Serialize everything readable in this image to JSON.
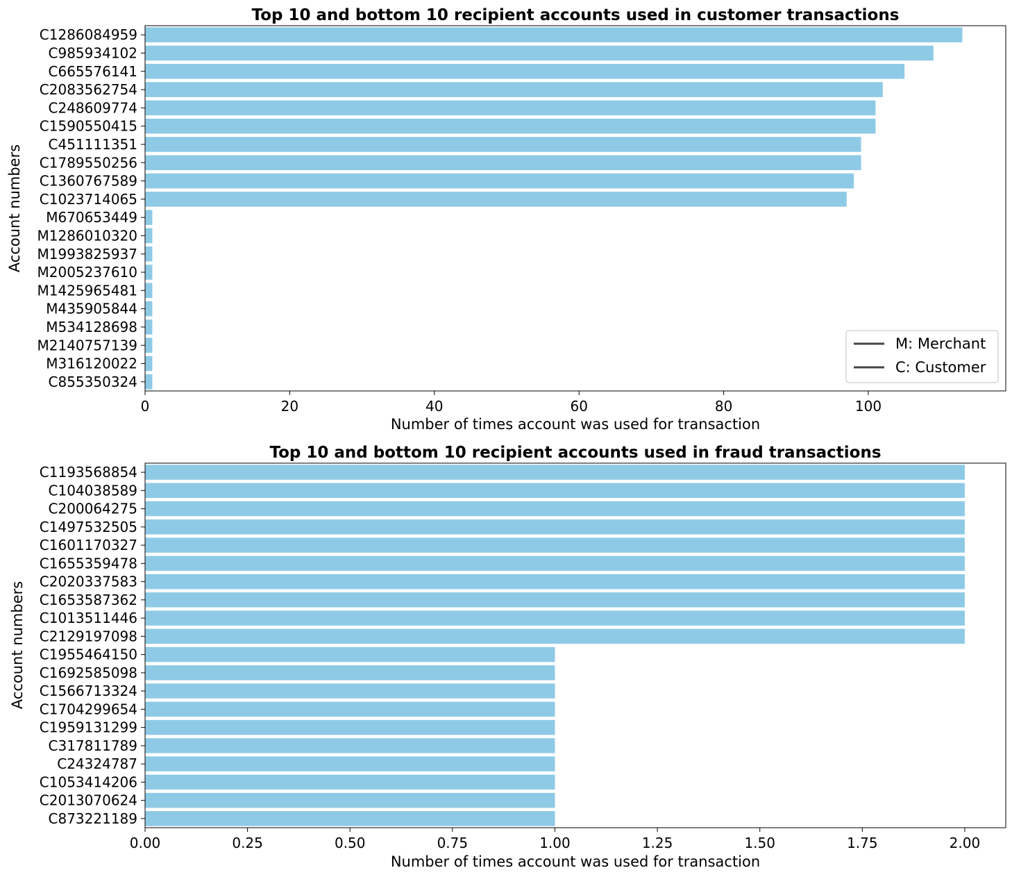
{
  "chart_data": [
    {
      "type": "bar",
      "orientation": "horizontal",
      "title": "Top 10 and bottom 10 recipient accounts used in customer transactions",
      "xlabel": "Number of times account was used for transaction",
      "ylabel": "Account numbers",
      "xlim": [
        0,
        119
      ],
      "xticks": [
        0,
        20,
        40,
        60,
        80,
        100
      ],
      "xtick_labels": [
        "0",
        "20",
        "40",
        "60",
        "80",
        "100"
      ],
      "bar_color": "#8ecae6",
      "legend_position": "lower right",
      "legend": [
        "M: Merchant",
        "C: Customer"
      ],
      "categories": [
        "C1286084959",
        "C985934102",
        "C665576141",
        "C2083562754",
        "C248609774",
        "C1590550415",
        "C451111351",
        "C1789550256",
        "C1360767589",
        "C1023714065",
        "M670653449",
        "M1286010320",
        "M1993825937",
        "M2005237610",
        "M1425965481",
        "M435905844",
        "M534128698",
        "M2140757139",
        "M316120022",
        "C855350324"
      ],
      "values": [
        113,
        109,
        105,
        102,
        101,
        101,
        99,
        99,
        98,
        97,
        1,
        1,
        1,
        1,
        1,
        1,
        1,
        1,
        1,
        1
      ]
    },
    {
      "type": "bar",
      "orientation": "horizontal",
      "title": "Top 10 and bottom 10 recipient accounts used in fraud transactions",
      "xlabel": "Number of times account was used for transaction",
      "ylabel": "Account numbers",
      "xlim": [
        0,
        2.1
      ],
      "xticks": [
        0,
        0.25,
        0.5,
        0.75,
        1.0,
        1.25,
        1.5,
        1.75,
        2.0
      ],
      "xtick_labels": [
        "0.00",
        "0.25",
        "0.50",
        "0.75",
        "1.00",
        "1.25",
        "1.50",
        "1.75",
        "2.00"
      ],
      "bar_color": "#8ecae6",
      "categories": [
        "C1193568854",
        "C104038589",
        "C200064275",
        "C1497532505",
        "C1601170327",
        "C1655359478",
        "C2020337583",
        "C1653587362",
        "C1013511446",
        "C2129197098",
        "C1955464150",
        "C1692585098",
        "C1566713324",
        "C1704299654",
        "C1959131299",
        "C317811789",
        "C24324787",
        "C1053414206",
        "C2013070624",
        "C873221189"
      ],
      "values": [
        2,
        2,
        2,
        2,
        2,
        2,
        2,
        2,
        2,
        2,
        1,
        1,
        1,
        1,
        1,
        1,
        1,
        1,
        1,
        1
      ]
    }
  ]
}
